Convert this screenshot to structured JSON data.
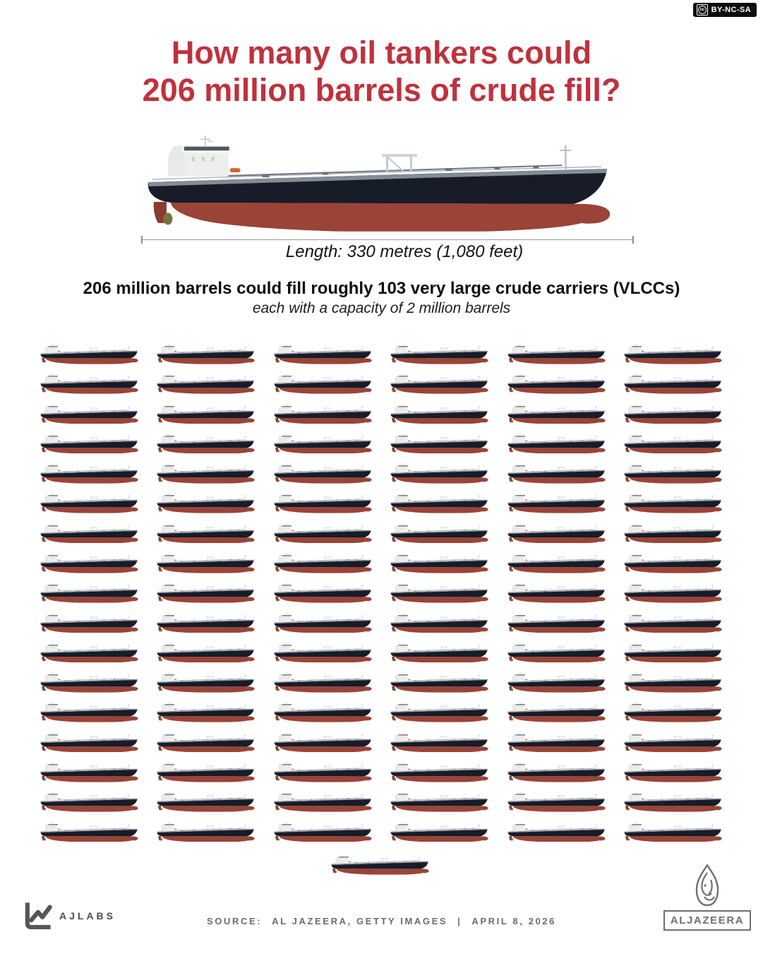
{
  "license": {
    "cc_glyph": "cc",
    "label": "BY-NC-SA"
  },
  "title": {
    "line1": "How many oil tankers could",
    "line2": "206 million barrels of crude fill?"
  },
  "hero": {
    "ship_icon": "vlcc-oil-tanker-side-view",
    "length_label": "Length: 330 metres (1,080 feet)"
  },
  "subtitle": {
    "bold": "206 million barrels could fill roughly 103 very large crude carriers (VLCCs)",
    "italic": "each with a capacity of 2 million barrels"
  },
  "chart_data": {
    "type": "pictograph",
    "title": "How many oil tankers could 206 million barrels of crude fill?",
    "unit_icon": "oil-tanker",
    "total_barrels": 206000000,
    "unit_value_barrels": 2000000,
    "icon_count": 103,
    "vlcc": {
      "length_metres": 330,
      "length_feet": 1080,
      "capacity_barrels": 2000000,
      "name": "very large crude carrier (VLCC)"
    },
    "grid": {
      "columns": 6,
      "full_rows": 17,
      "full_grid_count": 102,
      "remainder_centered": 1
    },
    "legend_position": "none",
    "grid_lines": false
  },
  "footer": {
    "ajlabs_label": "AJLABS",
    "source": {
      "label": "SOURCE:",
      "agencies": "AL JAZEERA, GETTY IMAGES",
      "separator": "|",
      "date": "APRIL 8, 2026"
    },
    "aljazeera_label": "ALJAZEERA"
  },
  "colors": {
    "title_red": "#bf323d",
    "hull_dark_navy": "#171c28",
    "hull_maroon": "#9a4437",
    "deck_gray": "#838c96",
    "badge_black": "#0d0d0d",
    "footer_gray": "#6b6b6b",
    "ajlabs_gray": "#4d4d4d"
  }
}
